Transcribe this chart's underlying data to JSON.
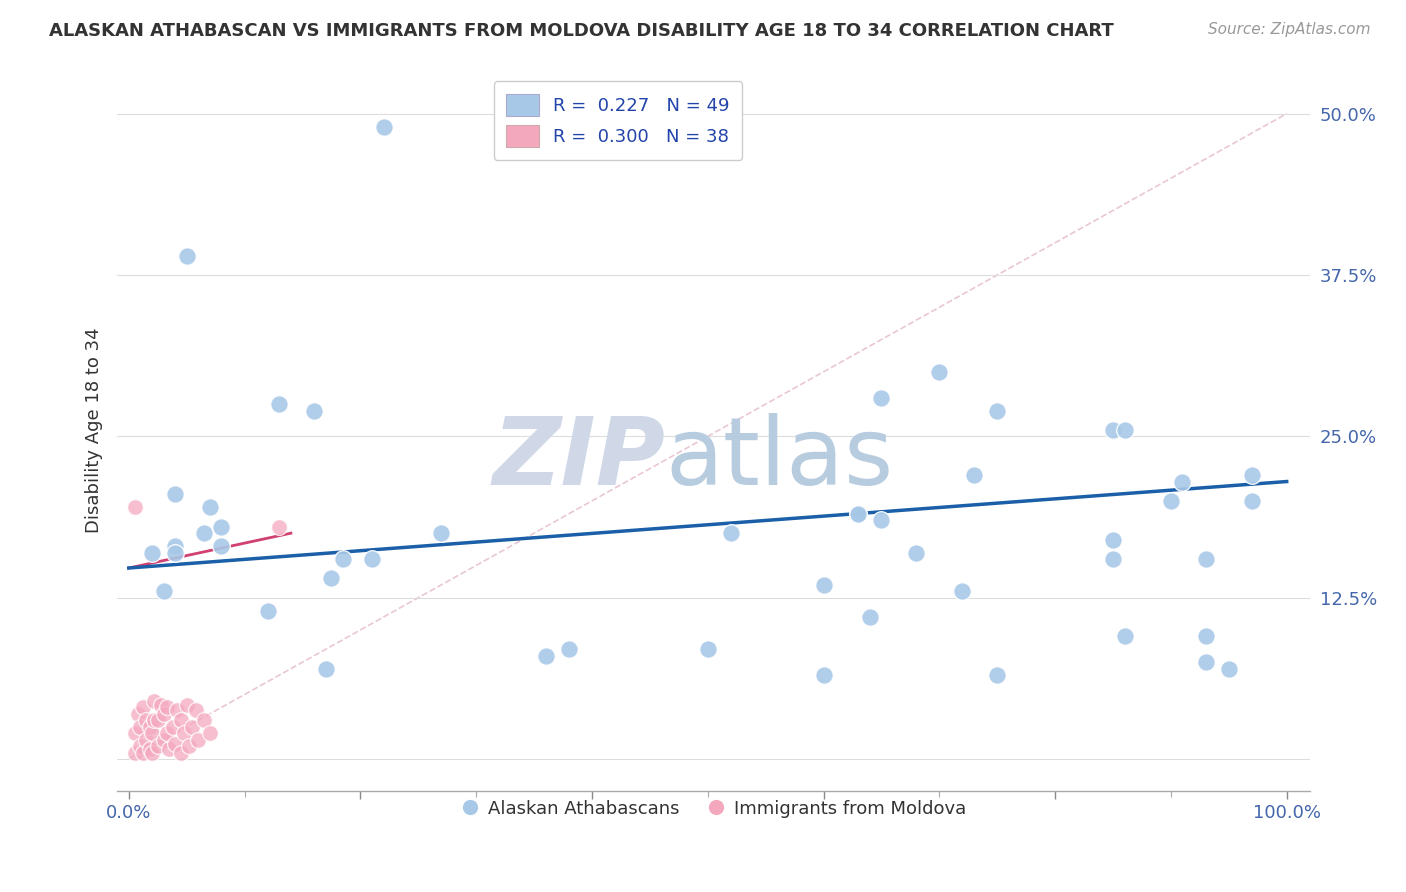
{
  "title": "ALASKAN ATHABASCAN VS IMMIGRANTS FROM MOLDOVA DISABILITY AGE 18 TO 34 CORRELATION CHART",
  "source": "Source: ZipAtlas.com",
  "ylabel": "Disability Age 18 to 34",
  "yticks": [
    0.0,
    0.125,
    0.25,
    0.375,
    0.5
  ],
  "ytick_labels": [
    "",
    "12.5%",
    "25.0%",
    "37.5%",
    "50.0%"
  ],
  "xlim": [
    -0.01,
    1.02
  ],
  "ylim": [
    -0.025,
    0.535
  ],
  "legend_r1": "R =  0.227",
  "legend_n1": "N = 49",
  "legend_r2": "R =  0.300",
  "legend_n2": "N = 38",
  "blue_color": "#a8c8e8",
  "pink_color": "#f4a8be",
  "line_blue": "#1a5fa8",
  "line_pink": "#d04070",
  "blue_points_x": [
    0.22,
    0.05,
    0.13,
    0.16,
    0.04,
    0.07,
    0.08,
    0.065,
    0.04,
    0.185,
    0.21,
    0.175,
    0.03,
    0.12,
    0.27,
    0.52,
    0.63,
    0.65,
    0.7,
    0.75,
    0.85,
    0.86,
    0.9,
    0.63,
    0.65,
    0.68,
    0.85,
    0.91,
    0.93,
    0.6,
    0.72,
    0.86,
    0.5,
    0.38,
    0.36,
    0.17,
    0.64,
    0.95,
    0.93,
    0.75,
    0.6,
    0.93,
    0.85,
    0.73,
    0.02,
    0.04,
    0.08,
    0.97,
    0.97
  ],
  "blue_points_y": [
    0.49,
    0.39,
    0.275,
    0.27,
    0.205,
    0.195,
    0.18,
    0.175,
    0.165,
    0.155,
    0.155,
    0.14,
    0.13,
    0.115,
    0.175,
    0.175,
    0.19,
    0.28,
    0.3,
    0.27,
    0.255,
    0.255,
    0.2,
    0.19,
    0.185,
    0.16,
    0.17,
    0.215,
    0.155,
    0.135,
    0.13,
    0.095,
    0.085,
    0.085,
    0.08,
    0.07,
    0.11,
    0.07,
    0.075,
    0.065,
    0.065,
    0.095,
    0.155,
    0.22,
    0.16,
    0.16,
    0.165,
    0.2,
    0.22
  ],
  "pink_points_x": [
    0.005,
    0.005,
    0.008,
    0.01,
    0.01,
    0.012,
    0.012,
    0.015,
    0.015,
    0.018,
    0.018,
    0.02,
    0.02,
    0.022,
    0.022,
    0.025,
    0.025,
    0.028,
    0.03,
    0.03,
    0.033,
    0.033,
    0.035,
    0.038,
    0.04,
    0.042,
    0.045,
    0.045,
    0.048,
    0.05,
    0.052,
    0.055,
    0.058,
    0.06,
    0.065,
    0.07,
    0.13,
    0.005
  ],
  "pink_points_y": [
    0.005,
    0.02,
    0.035,
    0.01,
    0.025,
    0.04,
    0.005,
    0.015,
    0.03,
    0.008,
    0.025,
    0.005,
    0.02,
    0.03,
    0.045,
    0.01,
    0.03,
    0.042,
    0.015,
    0.035,
    0.02,
    0.04,
    0.008,
    0.025,
    0.012,
    0.038,
    0.005,
    0.03,
    0.02,
    0.042,
    0.01,
    0.025,
    0.038,
    0.015,
    0.03,
    0.02,
    0.18,
    0.195
  ],
  "blue_trendline_x": [
    0.0,
    1.0
  ],
  "blue_trendline_y": [
    0.148,
    0.215
  ],
  "pink_trendline_x": [
    0.0,
    0.14
  ],
  "pink_trendline_y": [
    0.148,
    0.175
  ],
  "diag_line_x": [
    0.0,
    1.0
  ],
  "diag_line_y": [
    0.0,
    0.5
  ]
}
